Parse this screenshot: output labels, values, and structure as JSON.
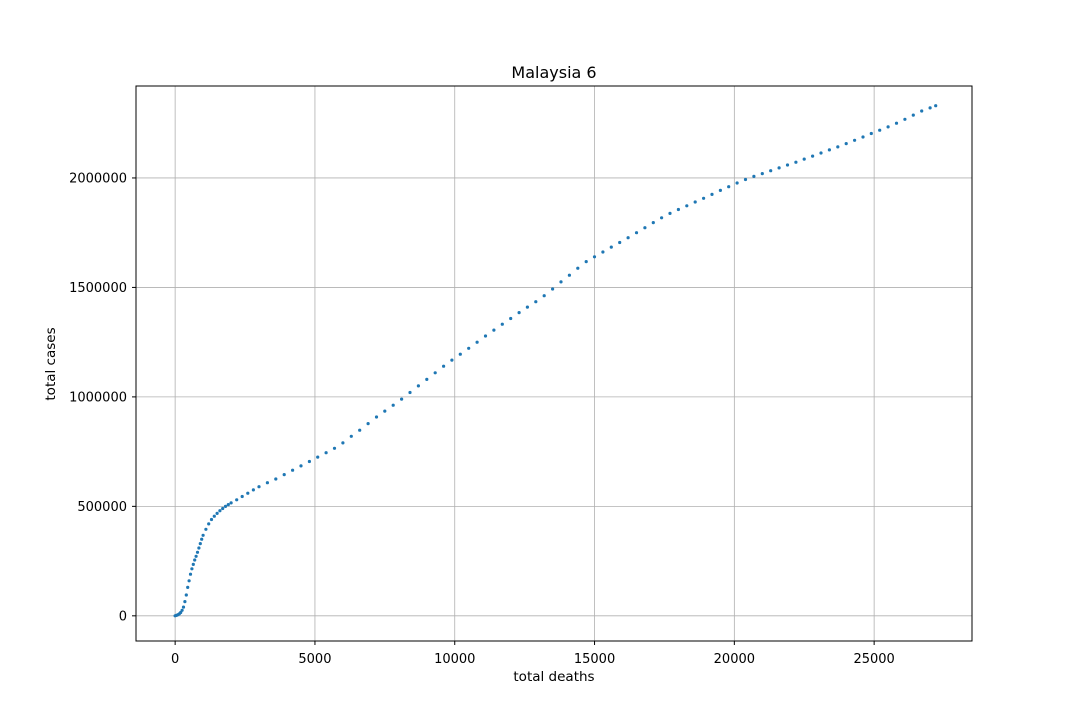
{
  "chart_data": {
    "type": "scatter",
    "title": "Malaysia 6",
    "xlabel": "total deaths",
    "ylabel": "total cases",
    "xlim": [
      -1400,
      28500
    ],
    "ylim": [
      -115000,
      2420000
    ],
    "xticks": [
      0,
      5000,
      10000,
      15000,
      20000,
      25000
    ],
    "yticks": [
      0,
      500000,
      1000000,
      1500000,
      2000000
    ],
    "xtick_labels": [
      "0",
      "5000",
      "10000",
      "15000",
      "20000",
      "25000"
    ],
    "ytick_labels": [
      "0",
      "500000",
      "1000000",
      "1500000",
      "2000000"
    ],
    "grid": true,
    "legend": "none",
    "marker_color": "#1f77b4",
    "series": [
      {
        "x": [
          0,
          50,
          100,
          150,
          200,
          250,
          300,
          350,
          400,
          450,
          500,
          550,
          600,
          650,
          700,
          750,
          800,
          850,
          900,
          950,
          1000,
          1100,
          1200,
          1300,
          1400,
          1500,
          1600,
          1700,
          1800,
          1900,
          2000,
          2200,
          2400,
          2600,
          2800,
          3000,
          3300,
          3600,
          3900,
          4200,
          4500,
          4800,
          5100,
          5400,
          5700,
          6000,
          6300,
          6600,
          6900,
          7200,
          7500,
          7800,
          8100,
          8400,
          8700,
          9000,
          9300,
          9600,
          9900,
          10200,
          10500,
          10800,
          11100,
          11400,
          11700,
          12000,
          12300,
          12600,
          12900,
          13200,
          13500,
          13800,
          14100,
          14400,
          14700,
          15000,
          15300,
          15600,
          15900,
          16200,
          16500,
          16800,
          17100,
          17400,
          17700,
          18000,
          18300,
          18600,
          18900,
          19200,
          19500,
          19800,
          20100,
          20400,
          20700,
          21000,
          21300,
          21600,
          21900,
          22200,
          22500,
          22800,
          23100,
          23400,
          23700,
          24000,
          24300,
          24600,
          24900,
          25200,
          25500,
          25800,
          26100,
          26400,
          26700,
          27000,
          27200
        ],
        "y": [
          0,
          2000,
          5000,
          9000,
          15000,
          25000,
          40000,
          65000,
          95000,
          130000,
          160000,
          190000,
          215000,
          235000,
          255000,
          272000,
          290000,
          310000,
          330000,
          350000,
          368000,
          395000,
          420000,
          440000,
          455000,
          468000,
          480000,
          490000,
          500000,
          508000,
          516000,
          530000,
          545000,
          560000,
          575000,
          590000,
          608000,
          625000,
          645000,
          665000,
          685000,
          705000,
          725000,
          745000,
          765000,
          790000,
          820000,
          848000,
          878000,
          908000,
          935000,
          962000,
          990000,
          1020000,
          1050000,
          1080000,
          1110000,
          1140000,
          1168000,
          1195000,
          1222000,
          1250000,
          1278000,
          1305000,
          1332000,
          1358000,
          1385000,
          1410000,
          1435000,
          1462000,
          1493000,
          1525000,
          1556000,
          1588000,
          1618000,
          1640000,
          1662000,
          1684000,
          1705000,
          1727000,
          1750000,
          1773000,
          1796000,
          1818000,
          1838000,
          1856000,
          1873000,
          1890000,
          1907000,
          1925000,
          1943000,
          1960000,
          1977000,
          1993000,
          2007000,
          2020000,
          2033000,
          2046000,
          2059000,
          2072000,
          2086000,
          2100000,
          2114000,
          2128000,
          2142000,
          2157000,
          2172000,
          2187000,
          2203000,
          2218000,
          2233000,
          2250000,
          2268000,
          2287000,
          2306000,
          2320000,
          2330000
        ]
      }
    ]
  }
}
